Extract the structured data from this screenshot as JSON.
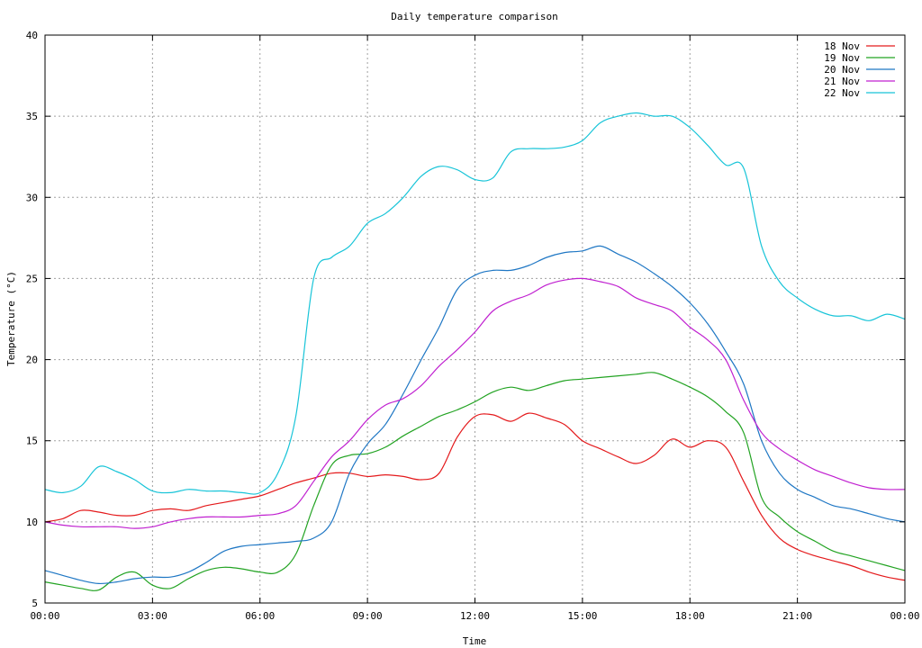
{
  "chart_data": {
    "type": "line",
    "title": "Daily temperature comparison",
    "xlabel": "Time",
    "ylabel": "Temperature (°C)",
    "xlim": [
      0,
      24
    ],
    "ylim": [
      5,
      40
    ],
    "grid": true,
    "legend_position": "top-right",
    "x_ticks": [
      {
        "value": 0,
        "label": "00:00"
      },
      {
        "value": 3,
        "label": "03:00"
      },
      {
        "value": 6,
        "label": "06:00"
      },
      {
        "value": 9,
        "label": "09:00"
      },
      {
        "value": 12,
        "label": "12:00"
      },
      {
        "value": 15,
        "label": "15:00"
      },
      {
        "value": 18,
        "label": "18:00"
      },
      {
        "value": 21,
        "label": "21:00"
      },
      {
        "value": 24,
        "label": "00:00"
      }
    ],
    "y_ticks": [
      {
        "value": 5,
        "label": "5"
      },
      {
        "value": 10,
        "label": "10"
      },
      {
        "value": 15,
        "label": "15"
      },
      {
        "value": 20,
        "label": "20"
      },
      {
        "value": 25,
        "label": "25"
      },
      {
        "value": 30,
        "label": "30"
      },
      {
        "value": 35,
        "label": "35"
      },
      {
        "value": 40,
        "label": "40"
      }
    ],
    "x": [
      0,
      0.5,
      1,
      1.5,
      2,
      2.5,
      3,
      3.5,
      4,
      4.5,
      5,
      5.5,
      6,
      6.5,
      7,
      7.5,
      8,
      8.5,
      9,
      9.5,
      10,
      10.5,
      11,
      11.5,
      12,
      12.5,
      13,
      13.5,
      14,
      14.5,
      15,
      15.5,
      16,
      16.5,
      17,
      17.5,
      18,
      18.5,
      19,
      19.5,
      20,
      20.5,
      21,
      21.5,
      22,
      22.5,
      23,
      23.5,
      24
    ],
    "series": [
      {
        "name": "18 Nov",
        "color": "#e41a1c",
        "values": [
          10.0,
          10.2,
          10.7,
          10.6,
          10.4,
          10.4,
          10.7,
          10.8,
          10.7,
          11.0,
          11.2,
          11.4,
          11.6,
          12.0,
          12.4,
          12.7,
          13.0,
          13.0,
          12.8,
          12.9,
          12.8,
          12.6,
          13.0,
          15.2,
          16.5,
          16.6,
          16.2,
          16.7,
          16.4,
          16.0,
          15.0,
          14.5,
          14.0,
          13.6,
          14.1,
          15.1,
          14.6,
          15.0,
          14.6,
          12.5,
          10.4,
          9.0,
          8.3,
          7.9,
          7.6,
          7.3,
          6.9,
          6.6,
          6.4
        ]
      },
      {
        "name": "19 Nov",
        "color": "#22a322",
        "values": [
          6.3,
          6.1,
          5.9,
          5.8,
          6.6,
          6.9,
          6.1,
          5.9,
          6.5,
          7.0,
          7.2,
          7.1,
          6.9,
          6.9,
          8.0,
          11.0,
          13.5,
          14.1,
          14.2,
          14.6,
          15.3,
          15.9,
          16.5,
          16.9,
          17.4,
          18.0,
          18.3,
          18.1,
          18.4,
          18.7,
          18.8,
          18.9,
          19.0,
          19.1,
          19.2,
          18.8,
          18.3,
          17.7,
          16.8,
          15.5,
          11.5,
          10.3,
          9.4,
          8.8,
          8.2,
          7.9,
          7.6,
          7.3,
          7.0
        ]
      },
      {
        "name": "20 Nov",
        "color": "#1f77c4",
        "values": [
          7.0,
          6.7,
          6.4,
          6.2,
          6.3,
          6.5,
          6.6,
          6.6,
          6.9,
          7.5,
          8.2,
          8.5,
          8.6,
          8.7,
          8.8,
          9.0,
          10.0,
          13.0,
          14.8,
          16.0,
          17.9,
          20.0,
          22.0,
          24.3,
          25.2,
          25.5,
          25.5,
          25.8,
          26.3,
          26.6,
          26.7,
          27.0,
          26.5,
          26.0,
          25.3,
          24.5,
          23.5,
          22.2,
          20.5,
          18.5,
          15.0,
          13.0,
          12.0,
          11.5,
          11.0,
          10.8,
          10.5,
          10.2,
          10.0
        ]
      },
      {
        "name": "21 Nov",
        "color": "#c020d0",
        "values": [
          10.0,
          9.8,
          9.7,
          9.7,
          9.7,
          9.6,
          9.7,
          10.0,
          10.2,
          10.3,
          10.3,
          10.3,
          10.4,
          10.5,
          11.0,
          12.5,
          14.0,
          15.0,
          16.3,
          17.2,
          17.6,
          18.4,
          19.6,
          20.6,
          21.7,
          23.0,
          23.6,
          24.0,
          24.6,
          24.9,
          25.0,
          24.8,
          24.5,
          23.8,
          23.4,
          23.0,
          22.0,
          21.2,
          20.0,
          17.5,
          15.5,
          14.5,
          13.8,
          13.2,
          12.8,
          12.4,
          12.1,
          12.0,
          12.0
        ]
      },
      {
        "name": "22 Nov",
        "color": "#17c4d8",
        "values": [
          12.0,
          11.8,
          12.2,
          13.4,
          13.1,
          12.6,
          11.9,
          11.8,
          12.0,
          11.9,
          11.9,
          11.8,
          11.8,
          13.0,
          16.5,
          25.0,
          26.3,
          27.0,
          28.4,
          29.0,
          30.0,
          31.3,
          31.9,
          31.7,
          31.1,
          31.2,
          32.8,
          33.0,
          33.0,
          33.1,
          33.5,
          34.6,
          35.0,
          35.2,
          35.0,
          35.0,
          34.3,
          33.2,
          32.0,
          31.8,
          27.0,
          24.8,
          23.8,
          23.1,
          22.7,
          22.7,
          22.4,
          22.8,
          22.5
        ]
      }
    ]
  }
}
